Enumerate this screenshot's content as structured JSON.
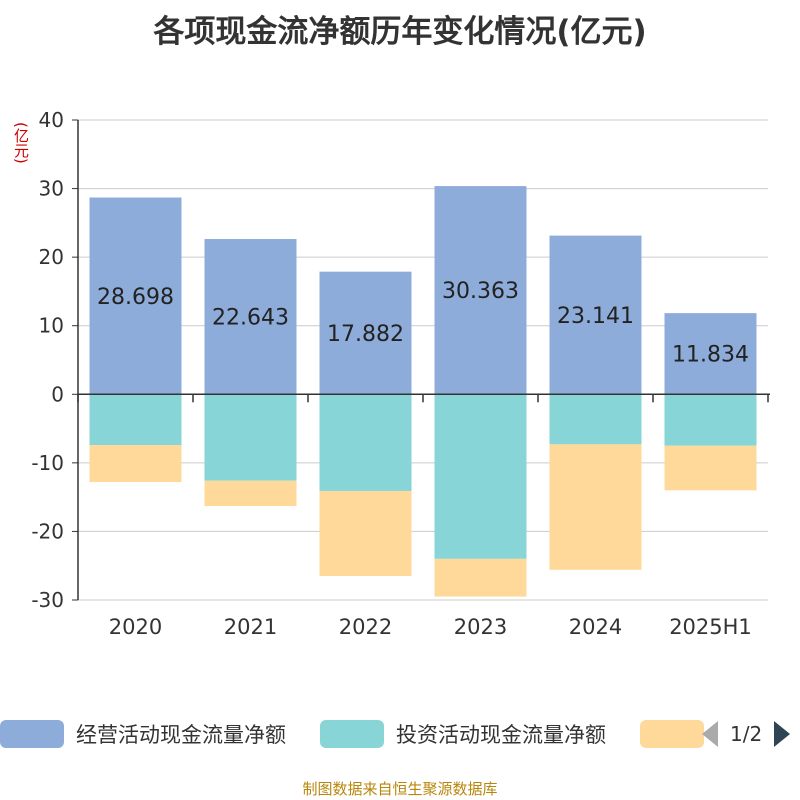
{
  "title": "各项现金流净额历年变化情况(亿元)",
  "unit_label": "(亿元)",
  "source": "制图数据来自恒生聚源数据库",
  "legend": {
    "items": [
      {
        "label": "经营活动现金流量净额",
        "color": "#8eacd9"
      },
      {
        "label": "投资活动现金流量净额",
        "color": "#87d5d6"
      },
      {
        "label": "",
        "color": "#ffd99a"
      }
    ],
    "page": "1/2"
  },
  "chart_data": {
    "type": "bar",
    "stacked": true,
    "categories": [
      "2020",
      "2021",
      "2022",
      "2023",
      "2024",
      "2025H1"
    ],
    "series": [
      {
        "name": "经营活动现金流量净额",
        "color": "#8eacd9",
        "values": [
          28.698,
          22.643,
          17.882,
          30.363,
          23.141,
          11.834
        ],
        "labels": [
          "28.698",
          "22.643",
          "17.882",
          "30.363",
          "23.141",
          "11.834"
        ]
      },
      {
        "name": "投资活动现金流量净额",
        "color": "#87d5d6",
        "values": [
          -7.4,
          -12.6,
          -14.1,
          -24.0,
          -7.3,
          -7.5
        ]
      },
      {
        "color": "#ffd99a",
        "values": [
          -5.4,
          -3.7,
          -12.4,
          -5.5,
          -18.3,
          -6.5
        ]
      }
    ],
    "ylim": [
      -30,
      40
    ],
    "yticks": [
      "40",
      "30",
      "20",
      "10",
      "0",
      "-10",
      "-20",
      "-30"
    ],
    "grid": true
  }
}
